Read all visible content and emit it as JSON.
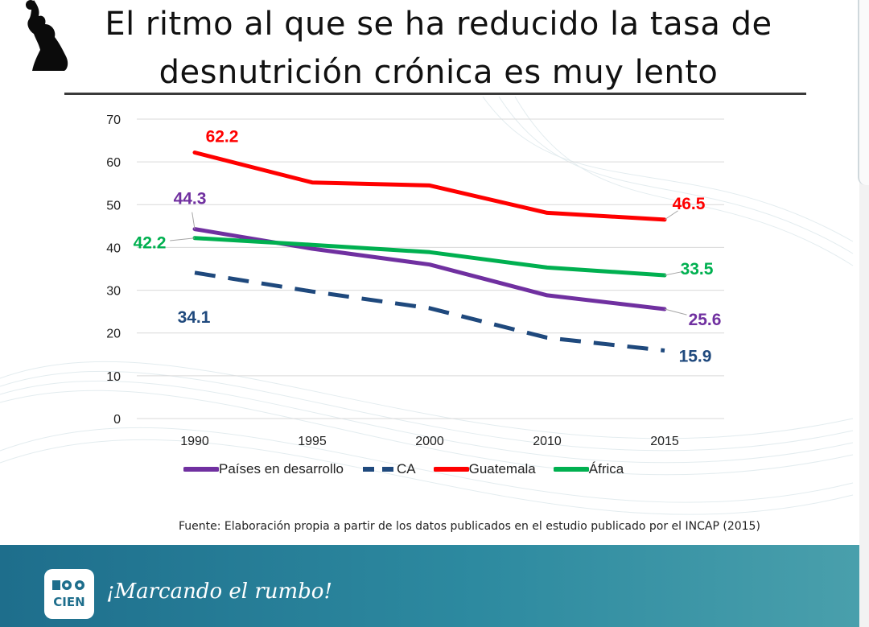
{
  "title": {
    "line1": "El ritmo al que se ha reducido la tasa de",
    "line2": "desnutrición crónica es muy lento"
  },
  "colors": {
    "developing": "#7030a0",
    "ca": "#1f497d",
    "guatemala": "#ff0000",
    "africa": "#00b050",
    "footer": "#2d8aa0"
  },
  "chart_data": {
    "type": "line",
    "categories": [
      "1990",
      "1995",
      "2000",
      "2010",
      "2015"
    ],
    "ylim": [
      0,
      70
    ],
    "yticks": [
      0,
      10,
      20,
      30,
      40,
      50,
      60,
      70
    ],
    "grid": true,
    "series": [
      {
        "key": "developing",
        "name": "Países en desarrollo",
        "values": [
          44.3,
          39.7,
          36.0,
          28.8,
          25.6
        ],
        "dash": false,
        "labels": [
          {
            "index": 0,
            "text": "44.3"
          },
          {
            "index": 4,
            "text": "25.6"
          }
        ]
      },
      {
        "key": "ca",
        "name": "CA",
        "values": [
          34.1,
          29.7,
          25.8,
          18.9,
          15.9
        ],
        "dash": true,
        "labels": [
          {
            "index": 0,
            "text": "34.1"
          },
          {
            "index": 4,
            "text": "15.9"
          }
        ]
      },
      {
        "key": "guatemala",
        "name": "Guatemala",
        "values": [
          62.2,
          55.2,
          54.5,
          48.1,
          46.5
        ],
        "dash": false,
        "labels": [
          {
            "index": 0,
            "text": "62.2"
          },
          {
            "index": 4,
            "text": "46.5"
          }
        ]
      },
      {
        "key": "africa",
        "name": "África",
        "values": [
          42.2,
          40.6,
          38.9,
          35.3,
          33.5
        ],
        "dash": false,
        "labels": [
          {
            "index": 0,
            "text": "42.2"
          },
          {
            "index": 4,
            "text": "33.5"
          }
        ]
      }
    ]
  },
  "legend": {
    "developing": "Países en desarrollo",
    "ca": "CA",
    "guatemala": "Guatemala",
    "africa": "África"
  },
  "source": "Fuente: Elaboración propia a partir de los datos publicados en el estudio publicado por el INCAP (2015)",
  "footer": {
    "logo_text": "CIEN",
    "tagline": "¡Marcando el rumbo!"
  }
}
